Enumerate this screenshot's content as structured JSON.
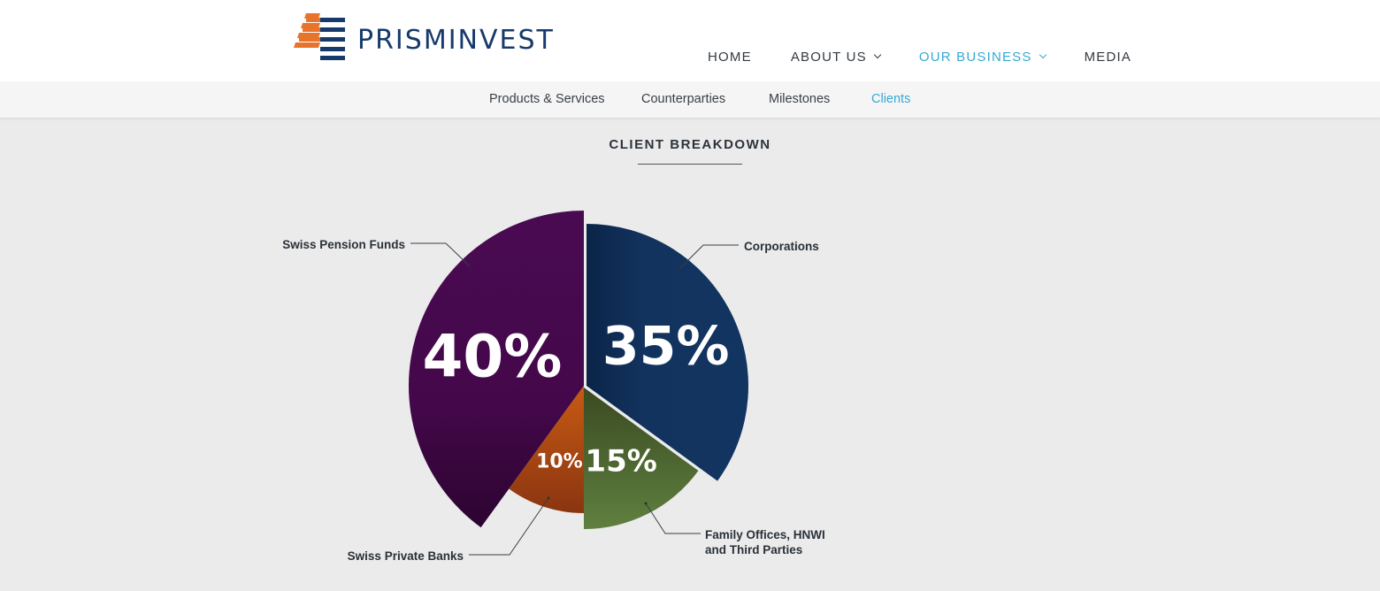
{
  "brand": {
    "name": "PRISMINVEST",
    "colors": {
      "navy": "#163a6b",
      "orange": "#e8732a",
      "accent": "#37a9d4"
    }
  },
  "nav": {
    "items": [
      {
        "label": "HOME",
        "dropdown": false,
        "active": false
      },
      {
        "label": "ABOUT US",
        "dropdown": true,
        "active": false
      },
      {
        "label": "OUR BUSINESS",
        "dropdown": true,
        "active": true
      },
      {
        "label": "MEDIA",
        "dropdown": false,
        "active": false
      }
    ]
  },
  "subnav": {
    "items": [
      {
        "label": "Products & Services",
        "active": false
      },
      {
        "label": "Counterparties",
        "active": false
      },
      {
        "label": "Milestones",
        "active": false
      },
      {
        "label": "Clients",
        "active": true
      }
    ]
  },
  "section": {
    "title": "CLIENT BREAKDOWN"
  },
  "chart_data": {
    "type": "pie",
    "title": "CLIENT BREAKDOWN",
    "unit": "%",
    "slices": [
      {
        "label": "Swiss Pension Funds",
        "value": 40,
        "display": "40%",
        "color": "#4a0a4e"
      },
      {
        "label": "Corporations",
        "value": 35,
        "display": "35%",
        "color": "#12335e"
      },
      {
        "label": "Family Offices, HNWI and Third Parties",
        "value": 15,
        "display": "15%",
        "color": "#5a7a3c"
      },
      {
        "label": "Swiss Private Banks",
        "value": 10,
        "display": "10%",
        "color": "#c05a1c"
      }
    ]
  }
}
